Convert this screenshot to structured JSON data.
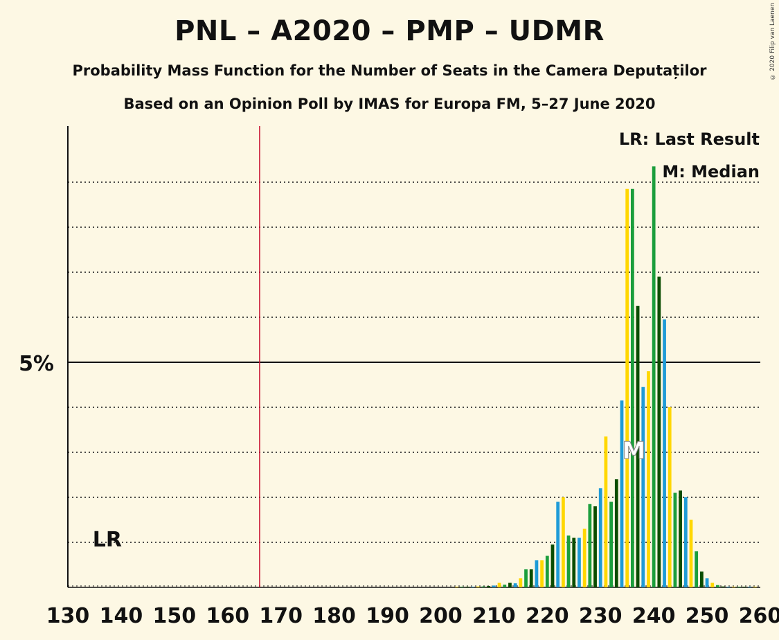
{
  "header": {
    "title": "PNL – A2020 – PMP – UDMR",
    "subtitle1": "Probability Mass Function for the Number of Seats in the Camera Deputaților",
    "subtitle2": "Based on an Opinion Poll by IMAS for Europa FM, 5–27 June 2020",
    "copyright": "© 2020 Filip van Laenen"
  },
  "legend": {
    "lr": "LR: Last Result",
    "median": "M: Median"
  },
  "markers": {
    "lr_label": "LR",
    "median_label": "M",
    "last_result": 137,
    "median": 236,
    "majority": 166
  },
  "colors": {
    "background": "#fdf8e4",
    "majority_line": "#c8102e",
    "palette": [
      "#1b9e3c",
      "#0a4d00",
      "#1e9bd7",
      "#ffd700"
    ]
  },
  "chart_data": {
    "type": "bar",
    "xlim": [
      130,
      260
    ],
    "ylim": [
      0,
      10.2
    ],
    "y_unit": "%",
    "y_tick_label": "5%",
    "y_tick_value": 5,
    "xticks": [
      "130",
      "140",
      "150",
      "160",
      "170",
      "180",
      "190",
      "200",
      "210",
      "220",
      "230",
      "240",
      "250",
      "260"
    ],
    "bars": [
      {
        "x": 203,
        "y": 0.01
      },
      {
        "x": 204,
        "y": 0.01
      },
      {
        "x": 205,
        "y": 0.01
      },
      {
        "x": 206,
        "y": 0.01
      },
      {
        "x": 207,
        "y": 0.02
      },
      {
        "x": 208,
        "y": 0.02
      },
      {
        "x": 209,
        "y": 0.03
      },
      {
        "x": 210,
        "y": 0.04
      },
      {
        "x": 211,
        "y": 0.1
      },
      {
        "x": 212,
        "y": 0.06
      },
      {
        "x": 213,
        "y": 0.1
      },
      {
        "x": 214,
        "y": 0.09
      },
      {
        "x": 215,
        "y": 0.2
      },
      {
        "x": 216,
        "y": 0.4
      },
      {
        "x": 217,
        "y": 0.4
      },
      {
        "x": 218,
        "y": 0.6
      },
      {
        "x": 219,
        "y": 0.6
      },
      {
        "x": 220,
        "y": 0.7
      },
      {
        "x": 221,
        "y": 0.95
      },
      {
        "x": 222,
        "y": 1.9
      },
      {
        "x": 223,
        "y": 2.0
      },
      {
        "x": 224,
        "y": 1.15
      },
      {
        "x": 225,
        "y": 1.1
      },
      {
        "x": 226,
        "y": 1.1
      },
      {
        "x": 227,
        "y": 1.3
      },
      {
        "x": 228,
        "y": 1.85
      },
      {
        "x": 229,
        "y": 1.8
      },
      {
        "x": 230,
        "y": 2.2
      },
      {
        "x": 231,
        "y": 3.35
      },
      {
        "x": 232,
        "y": 1.9
      },
      {
        "x": 233,
        "y": 2.4
      },
      {
        "x": 234,
        "y": 4.15
      },
      {
        "x": 235,
        "y": 8.85
      },
      {
        "x": 236,
        "y": 8.85
      },
      {
        "x": 237,
        "y": 6.25
      },
      {
        "x": 238,
        "y": 4.45
      },
      {
        "x": 239,
        "y": 4.8
      },
      {
        "x": 240,
        "y": 9.35
      },
      {
        "x": 241,
        "y": 6.9
      },
      {
        "x": 242,
        "y": 5.95
      },
      {
        "x": 243,
        "y": 4.0
      },
      {
        "x": 244,
        "y": 2.1
      },
      {
        "x": 245,
        "y": 2.15
      },
      {
        "x": 246,
        "y": 2.0
      },
      {
        "x": 247,
        "y": 1.5
      },
      {
        "x": 248,
        "y": 0.8
      },
      {
        "x": 249,
        "y": 0.35
      },
      {
        "x": 250,
        "y": 0.2
      },
      {
        "x": 251,
        "y": 0.1
      },
      {
        "x": 252,
        "y": 0.05
      },
      {
        "x": 253,
        "y": 0.02
      },
      {
        "x": 254,
        "y": 0.01
      },
      {
        "x": 255,
        "y": 0.01
      },
      {
        "x": 256,
        "y": 0.01
      },
      {
        "x": 257,
        "y": 0.01
      },
      {
        "x": 258,
        "y": 0.01
      },
      {
        "x": 259,
        "y": 0.01
      }
    ]
  }
}
